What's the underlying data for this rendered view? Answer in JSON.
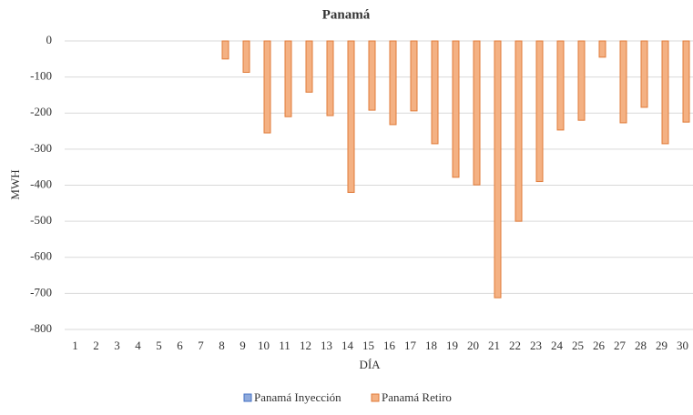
{
  "chart_data": {
    "type": "bar",
    "title": "Panamá",
    "x_label": "DÍA",
    "y_label": "MWH",
    "categories": [
      "1",
      "2",
      "3",
      "4",
      "5",
      "6",
      "7",
      "8",
      "9",
      "10",
      "11",
      "12",
      "13",
      "14",
      "15",
      "16",
      "17",
      "18",
      "19",
      "20",
      "21",
      "22",
      "23",
      "24",
      "25",
      "26",
      "27",
      "28",
      "29",
      "30"
    ],
    "series": [
      {
        "name": "Panamá Inyección",
        "color": "#8faadc",
        "values": [
          0,
          0,
          0,
          0,
          0,
          0,
          0,
          0,
          0,
          0,
          0,
          0,
          0,
          0,
          0,
          0,
          0,
          0,
          0,
          0,
          0,
          0,
          0,
          0,
          0,
          0,
          0,
          0,
          0,
          0
        ]
      },
      {
        "name": "Panamá Retiro",
        "color": "#f4b183",
        "values": [
          0,
          0,
          0,
          0,
          0,
          0,
          0,
          -50,
          -87,
          -255,
          -210,
          -142,
          -207,
          -420,
          -192,
          -232,
          -194,
          -285,
          -378,
          -399,
          -712,
          -500,
          -390,
          -247,
          -220,
          -45,
          -227,
          -184,
          -285,
          -225
        ]
      }
    ],
    "ylim": [
      -800,
      0
    ],
    "yticks": [
      0,
      -100,
      -200,
      -300,
      -400,
      -500,
      -600,
      -700,
      -800
    ],
    "grid": true,
    "legend": "bottom"
  }
}
